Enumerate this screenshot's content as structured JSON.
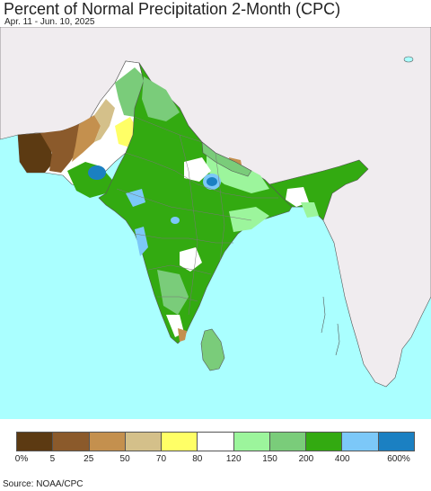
{
  "header": {
    "title": "Percent of Normal Precipitation 2-Month (CPC)",
    "subtitle": "Apr. 11 - Jun. 10, 2025"
  },
  "legend": {
    "bins": [
      {
        "color": "#5c3a12"
      },
      {
        "color": "#8b5a2b"
      },
      {
        "color": "#c4904e"
      },
      {
        "color": "#d4c08a"
      },
      {
        "color": "#ffff66"
      },
      {
        "color": "#ffffff"
      },
      {
        "color": "#9cf59c"
      },
      {
        "color": "#7acc7a"
      },
      {
        "color": "#33aa11"
      },
      {
        "color": "#7cc8f8"
      },
      {
        "color": "#1b80c2"
      }
    ],
    "tick_labels": [
      "0%",
      "5",
      "25",
      "50",
      "70",
      "80",
      "120",
      "150",
      "200",
      "400",
      "600%"
    ]
  },
  "colors": {
    "ocean": "#aaffff",
    "land_outside": "#f0ecef",
    "border": "#555555"
  },
  "footer": {
    "source": "Source: NOAA/CPC"
  }
}
